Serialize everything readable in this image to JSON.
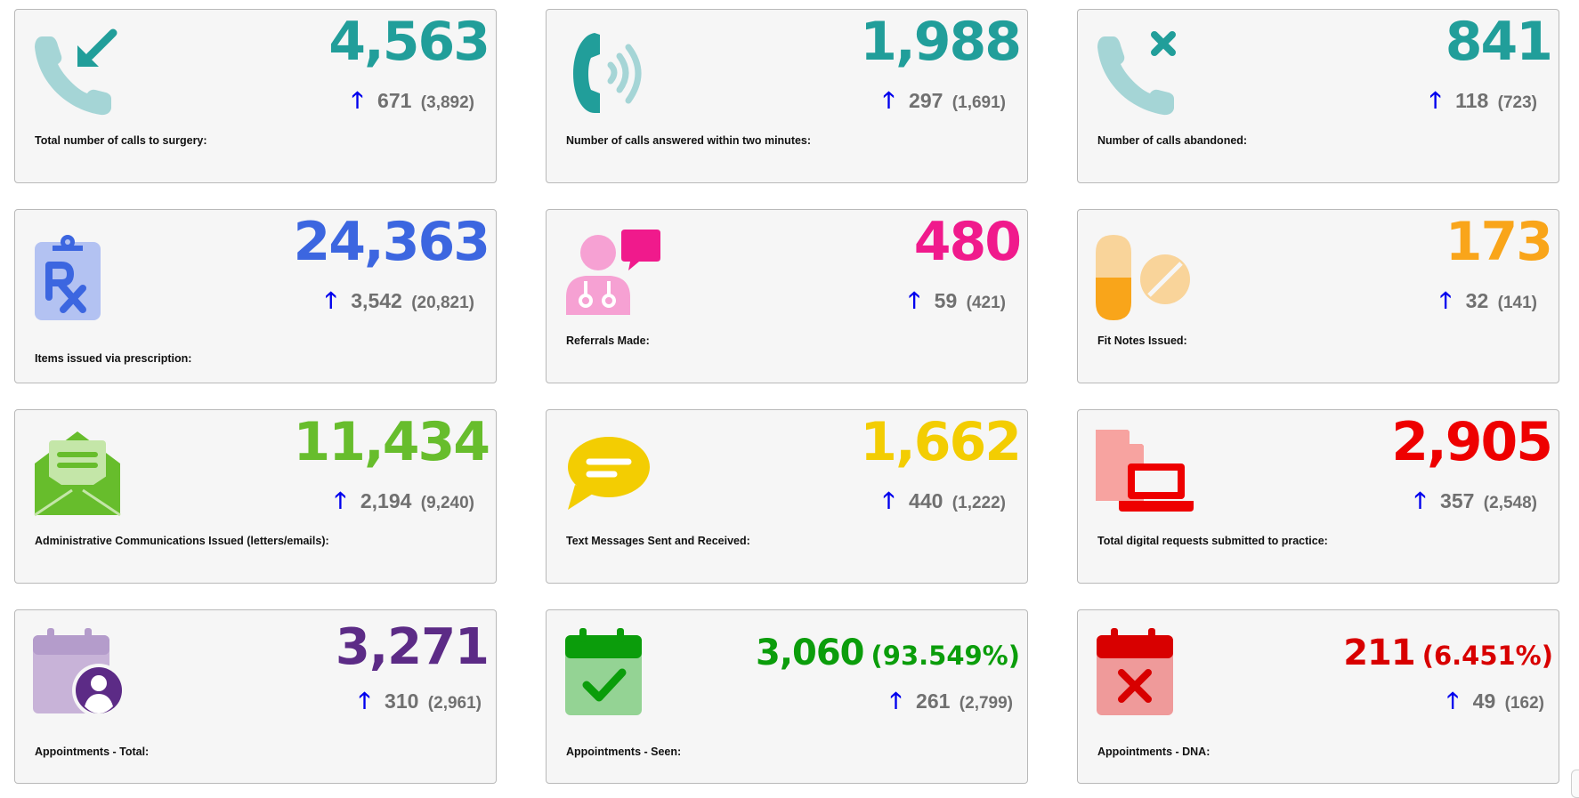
{
  "colors": {
    "teal": "#219e9a",
    "blue": "#3c66e0",
    "pink": "#f01a8c",
    "orange": "#f9a51a",
    "green": "#67bd2c",
    "yellow": "#f3cd02",
    "red": "#ee0000",
    "purple": "#5c2b86",
    "dark_green": "#0b9d0b",
    "dark_red": "#d80000",
    "arrow": "#0000ee",
    "muted": "#707070"
  },
  "cards": [
    {
      "icon": "incoming-call-icon",
      "value": "4,563",
      "pct": "",
      "change": "671",
      "previous": "(3,892)",
      "label": "Total number of calls to surgery:",
      "color": "#219e9a"
    },
    {
      "icon": "ringing-phone-icon",
      "value": "1,988",
      "pct": "",
      "change": "297",
      "previous": "(1,691)",
      "label": "Number of calls answered within two minutes:",
      "color": "#219e9a"
    },
    {
      "icon": "missed-call-icon",
      "value": "841",
      "pct": "",
      "change": "118",
      "previous": "(723)",
      "label": "Number of calls abandoned:",
      "color": "#219e9a"
    },
    {
      "icon": "prescription-icon",
      "value": "24,363",
      "pct": "",
      "change": "3,542",
      "previous": "(20,821)",
      "label": "Items issued via prescription:",
      "color": "#3c66e0"
    },
    {
      "icon": "doctor-chat-icon",
      "value": "480",
      "pct": "",
      "change": "59",
      "previous": "(421)",
      "label": "Referrals Made:",
      "color": "#f01a8c"
    },
    {
      "icon": "pills-icon",
      "value": "173",
      "pct": "",
      "change": "32",
      "previous": "(141)",
      "label": "Fit Notes Issued:",
      "color": "#f9a51a"
    },
    {
      "icon": "open-envelope-icon",
      "value": "11,434",
      "pct": "",
      "change": "2,194",
      "previous": "(9,240)",
      "label": "Administrative Communications Issued (letters/emails):",
      "color": "#67bd2c"
    },
    {
      "icon": "speech-bubble-icon",
      "value": "1,662",
      "pct": "",
      "change": "440",
      "previous": "(1,222)",
      "label": "Text Messages Sent and Received:",
      "color": "#f3cd02"
    },
    {
      "icon": "digital-request-icon",
      "value": "2,905",
      "pct": "",
      "change": "357",
      "previous": "(2,548)",
      "label": "Total digital requests submitted to practice:",
      "color": "#ee0000"
    },
    {
      "icon": "calendar-user-icon",
      "value": "3,271",
      "pct": "",
      "change": "310",
      "previous": "(2,961)",
      "label": "Appointments - Total:",
      "color": "#5c2b86"
    },
    {
      "icon": "calendar-check-icon",
      "value": "3,060",
      "pct": "(93.549%)",
      "change": "261",
      "previous": "(2,799)",
      "label": "Appointments - Seen:",
      "color": "#0b9d0b"
    },
    {
      "icon": "calendar-x-icon",
      "value": "211",
      "pct": "(6.451%)",
      "change": "49",
      "previous": "(162)",
      "label": "Appointments - DNA:",
      "color": "#d80000"
    }
  ]
}
